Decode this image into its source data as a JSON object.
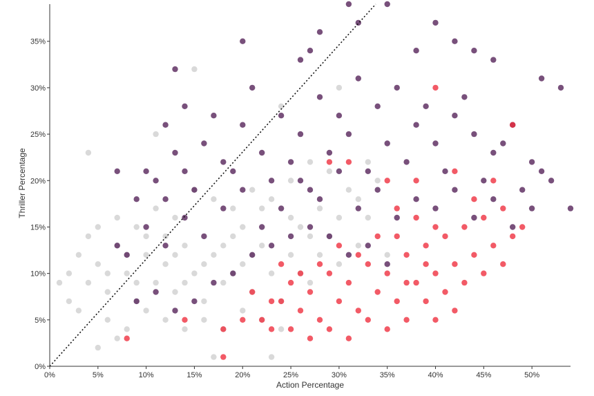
{
  "chart_data": {
    "type": "scatter",
    "title": "",
    "xlabel": "Action Percentage",
    "ylabel": "Thriller Percentage",
    "xlim": [
      0,
      0.54
    ],
    "ylim": [
      0,
      0.39
    ],
    "x_ticks": [
      0,
      0.05,
      0.1,
      0.15,
      0.2,
      0.25,
      0.3,
      0.35,
      0.4,
      0.45,
      0.5
    ],
    "x_tick_labels": [
      "0%",
      "5%",
      "10%",
      "15%",
      "20%",
      "25%",
      "30%",
      "35%",
      "40%",
      "45%",
      "50%"
    ],
    "y_ticks": [
      0,
      0.05,
      0.1,
      0.15,
      0.2,
      0.25,
      0.3,
      0.35
    ],
    "y_tick_labels": [
      "0%",
      "5%",
      "10%",
      "15%",
      "20%",
      "25%",
      "30%",
      "35%"
    ],
    "grid": false,
    "reference_line": {
      "style": "dotted",
      "color": "#111111",
      "from": [
        0,
        0
      ],
      "to": [
        0.39,
        0.45
      ]
    },
    "colors": {
      "gray": "#c4c4c4",
      "purple": "#5a2a5e",
      "red": "#ee2b3b"
    },
    "series": [
      {
        "color_key": "gray",
        "points": [
          [
            0.02,
            0.1
          ],
          [
            0.03,
            0.12
          ],
          [
            0.04,
            0.09
          ],
          [
            0.05,
            0.11
          ],
          [
            0.06,
            0.08
          ],
          [
            0.07,
            0.13
          ],
          [
            0.08,
            0.1
          ],
          [
            0.09,
            0.07
          ],
          [
            0.1,
            0.12
          ],
          [
            0.11,
            0.09
          ],
          [
            0.12,
            0.11
          ],
          [
            0.13,
            0.08
          ],
          [
            0.14,
            0.13
          ],
          [
            0.15,
            0.1
          ],
          [
            0.16,
            0.07
          ],
          [
            0.17,
            0.12
          ],
          [
            0.18,
            0.09
          ],
          [
            0.19,
            0.14
          ],
          [
            0.2,
            0.11
          ],
          [
            0.21,
            0.08
          ],
          [
            0.22,
            0.13
          ],
          [
            0.23,
            0.1
          ],
          [
            0.24,
            0.07
          ],
          [
            0.25,
            0.12
          ],
          [
            0.26,
            0.15
          ],
          [
            0.27,
            0.09
          ],
          [
            0.28,
            0.17
          ],
          [
            0.29,
            0.14
          ],
          [
            0.3,
            0.11
          ],
          [
            0.31,
            0.19
          ],
          [
            0.32,
            0.13
          ],
          [
            0.33,
            0.16
          ],
          [
            0.34,
            0.2
          ],
          [
            0.35,
            0.12
          ],
          [
            0.06,
            0.05
          ],
          [
            0.08,
            0.04
          ],
          [
            0.1,
            0.06
          ],
          [
            0.12,
            0.05
          ],
          [
            0.14,
            0.04
          ],
          [
            0.16,
            0.05
          ],
          [
            0.18,
            0.04
          ],
          [
            0.2,
            0.06
          ],
          [
            0.22,
            0.05
          ],
          [
            0.24,
            0.04
          ],
          [
            0.09,
            0.15
          ],
          [
            0.11,
            0.17
          ],
          [
            0.13,
            0.16
          ],
          [
            0.15,
            0.19
          ],
          [
            0.17,
            0.18
          ],
          [
            0.19,
            0.17
          ],
          [
            0.21,
            0.19
          ],
          [
            0.23,
            0.18
          ],
          [
            0.25,
            0.2
          ],
          [
            0.27,
            0.22
          ],
          [
            0.29,
            0.21
          ],
          [
            0.04,
            0.14
          ],
          [
            0.05,
            0.15
          ],
          [
            0.07,
            0.16
          ],
          [
            0.03,
            0.06
          ],
          [
            0.02,
            0.07
          ],
          [
            0.01,
            0.09
          ],
          [
            0.04,
            0.23
          ],
          [
            0.15,
            0.32
          ],
          [
            0.11,
            0.25
          ],
          [
            0.3,
            0.3
          ],
          [
            0.24,
            0.28
          ],
          [
            0.23,
            0.01
          ],
          [
            0.17,
            0.01
          ],
          [
            0.05,
            0.02
          ],
          [
            0.07,
            0.03
          ],
          [
            0.1,
            0.14
          ],
          [
            0.12,
            0.14
          ],
          [
            0.14,
            0.09
          ],
          [
            0.16,
            0.11
          ],
          [
            0.18,
            0.13
          ],
          [
            0.2,
            0.15
          ],
          [
            0.22,
            0.17
          ],
          [
            0.26,
            0.1
          ],
          [
            0.28,
            0.12
          ],
          [
            0.3,
            0.16
          ],
          [
            0.32,
            0.18
          ],
          [
            0.08,
            0.12
          ],
          [
            0.06,
            0.1
          ],
          [
            0.09,
            0.09
          ],
          [
            0.13,
            0.12
          ],
          [
            0.19,
            0.1
          ],
          [
            0.21,
            0.12
          ],
          [
            0.25,
            0.16
          ],
          [
            0.27,
            0.14
          ],
          [
            0.33,
            0.22
          ]
        ]
      },
      {
        "color_key": "purple",
        "points": [
          [
            0.08,
            0.12
          ],
          [
            0.1,
            0.15
          ],
          [
            0.12,
            0.18
          ],
          [
            0.14,
            0.21
          ],
          [
            0.16,
            0.24
          ],
          [
            0.18,
            0.22
          ],
          [
            0.2,
            0.26
          ],
          [
            0.22,
            0.23
          ],
          [
            0.24,
            0.27
          ],
          [
            0.26,
            0.25
          ],
          [
            0.28,
            0.29
          ],
          [
            0.3,
            0.27
          ],
          [
            0.32,
            0.31
          ],
          [
            0.34,
            0.28
          ],
          [
            0.36,
            0.3
          ],
          [
            0.38,
            0.26
          ],
          [
            0.4,
            0.24
          ],
          [
            0.42,
            0.27
          ],
          [
            0.44,
            0.25
          ],
          [
            0.46,
            0.23
          ],
          [
            0.48,
            0.26
          ],
          [
            0.5,
            0.22
          ],
          [
            0.52,
            0.2
          ],
          [
            0.54,
            0.17
          ],
          [
            0.11,
            0.2
          ],
          [
            0.13,
            0.23
          ],
          [
            0.15,
            0.19
          ],
          [
            0.17,
            0.27
          ],
          [
            0.19,
            0.21
          ],
          [
            0.21,
            0.3
          ],
          [
            0.23,
            0.2
          ],
          [
            0.25,
            0.22
          ],
          [
            0.27,
            0.19
          ],
          [
            0.29,
            0.23
          ],
          [
            0.31,
            0.25
          ],
          [
            0.33,
            0.21
          ],
          [
            0.35,
            0.24
          ],
          [
            0.37,
            0.22
          ],
          [
            0.39,
            0.28
          ],
          [
            0.41,
            0.21
          ],
          [
            0.43,
            0.29
          ],
          [
            0.45,
            0.2
          ],
          [
            0.47,
            0.24
          ],
          [
            0.49,
            0.19
          ],
          [
            0.51,
            0.21
          ],
          [
            0.09,
            0.18
          ],
          [
            0.12,
            0.13
          ],
          [
            0.14,
            0.16
          ],
          [
            0.16,
            0.14
          ],
          [
            0.18,
            0.17
          ],
          [
            0.2,
            0.19
          ],
          [
            0.22,
            0.15
          ],
          [
            0.24,
            0.17
          ],
          [
            0.26,
            0.2
          ],
          [
            0.28,
            0.18
          ],
          [
            0.3,
            0.21
          ],
          [
            0.32,
            0.17
          ],
          [
            0.34,
            0.19
          ],
          [
            0.36,
            0.16
          ],
          [
            0.38,
            0.18
          ],
          [
            0.4,
            0.17
          ],
          [
            0.42,
            0.19
          ],
          [
            0.44,
            0.16
          ],
          [
            0.46,
            0.18
          ],
          [
            0.48,
            0.15
          ],
          [
            0.5,
            0.17
          ],
          [
            0.31,
            0.39
          ],
          [
            0.35,
            0.39
          ],
          [
            0.32,
            0.37
          ],
          [
            0.4,
            0.37
          ],
          [
            0.28,
            0.36
          ],
          [
            0.2,
            0.35
          ],
          [
            0.27,
            0.34
          ],
          [
            0.26,
            0.33
          ],
          [
            0.38,
            0.34
          ],
          [
            0.44,
            0.34
          ],
          [
            0.46,
            0.33
          ],
          [
            0.42,
            0.35
          ],
          [
            0.13,
            0.32
          ],
          [
            0.14,
            0.28
          ],
          [
            0.53,
            0.3
          ],
          [
            0.51,
            0.31
          ],
          [
            0.27,
            0.15
          ],
          [
            0.29,
            0.14
          ],
          [
            0.31,
            0.12
          ],
          [
            0.33,
            0.13
          ],
          [
            0.35,
            0.11
          ],
          [
            0.25,
            0.14
          ],
          [
            0.23,
            0.13
          ],
          [
            0.21,
            0.12
          ],
          [
            0.19,
            0.1
          ],
          [
            0.17,
            0.09
          ],
          [
            0.15,
            0.07
          ],
          [
            0.13,
            0.06
          ],
          [
            0.11,
            0.08
          ],
          [
            0.09,
            0.07
          ],
          [
            0.07,
            0.13
          ],
          [
            0.07,
            0.21
          ],
          [
            0.1,
            0.21
          ],
          [
            0.12,
            0.26
          ]
        ]
      },
      {
        "color_key": "red",
        "points": [
          [
            0.22,
            0.05
          ],
          [
            0.24,
            0.07
          ],
          [
            0.25,
            0.09
          ],
          [
            0.26,
            0.06
          ],
          [
            0.27,
            0.08
          ],
          [
            0.28,
            0.05
          ],
          [
            0.29,
            0.1
          ],
          [
            0.3,
            0.07
          ],
          [
            0.31,
            0.09
          ],
          [
            0.32,
            0.06
          ],
          [
            0.33,
            0.11
          ],
          [
            0.34,
            0.08
          ],
          [
            0.35,
            0.1
          ],
          [
            0.36,
            0.07
          ],
          [
            0.37,
            0.12
          ],
          [
            0.38,
            0.09
          ],
          [
            0.39,
            0.13
          ],
          [
            0.4,
            0.1
          ],
          [
            0.41,
            0.14
          ],
          [
            0.42,
            0.11
          ],
          [
            0.43,
            0.15
          ],
          [
            0.44,
            0.12
          ],
          [
            0.45,
            0.16
          ],
          [
            0.46,
            0.13
          ],
          [
            0.47,
            0.17
          ],
          [
            0.48,
            0.14
          ],
          [
            0.49,
            0.15
          ],
          [
            0.36,
            0.14
          ],
          [
            0.38,
            0.16
          ],
          [
            0.4,
            0.15
          ],
          [
            0.37,
            0.05
          ],
          [
            0.35,
            0.04
          ],
          [
            0.33,
            0.05
          ],
          [
            0.31,
            0.03
          ],
          [
            0.29,
            0.04
          ],
          [
            0.27,
            0.03
          ],
          [
            0.25,
            0.04
          ],
          [
            0.23,
            0.04
          ],
          [
            0.34,
            0.14
          ],
          [
            0.32,
            0.12
          ],
          [
            0.3,
            0.13
          ],
          [
            0.28,
            0.11
          ],
          [
            0.26,
            0.1
          ],
          [
            0.24,
            0.11
          ],
          [
            0.39,
            0.07
          ],
          [
            0.41,
            0.08
          ],
          [
            0.43,
            0.09
          ],
          [
            0.45,
            0.1
          ],
          [
            0.4,
            0.05
          ],
          [
            0.42,
            0.06
          ],
          [
            0.47,
            0.11
          ],
          [
            0.44,
            0.18
          ],
          [
            0.46,
            0.2
          ],
          [
            0.42,
            0.21
          ],
          [
            0.38,
            0.2
          ],
          [
            0.35,
            0.2
          ],
          [
            0.31,
            0.22
          ],
          [
            0.29,
            0.22
          ],
          [
            0.48,
            0.26
          ],
          [
            0.4,
            0.3
          ],
          [
            0.18,
            0.04
          ],
          [
            0.18,
            0.01
          ],
          [
            0.08,
            0.03
          ],
          [
            0.14,
            0.05
          ],
          [
            0.23,
            0.07
          ],
          [
            0.21,
            0.08
          ],
          [
            0.2,
            0.05
          ],
          [
            0.36,
            0.17
          ],
          [
            0.39,
            0.11
          ],
          [
            0.37,
            0.09
          ]
        ]
      }
    ]
  }
}
